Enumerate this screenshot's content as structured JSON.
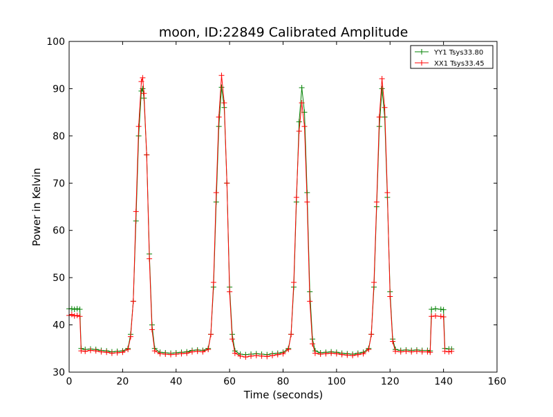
{
  "chart_data": {
    "type": "line",
    "title": "moon, ID:22849 Calibrated Amplitude",
    "xlabel": "Time (seconds)",
    "ylabel": "Power in Kelvin",
    "xlim": [
      0,
      160
    ],
    "ylim": [
      30,
      100
    ],
    "xticks": [
      0,
      20,
      40,
      60,
      80,
      100,
      120,
      140,
      160
    ],
    "yticks": [
      30,
      40,
      50,
      60,
      70,
      80,
      90,
      100
    ],
    "grid": false,
    "legend_position": "top-right",
    "peaks": [
      {
        "time": 27.2,
        "yy1": 90.0,
        "xx1": 92.3
      },
      {
        "time": 57.0,
        "yy1": 90.3,
        "xx1": 92.8
      },
      {
        "time": 87.0,
        "yy1": 90.2,
        "xx1": 87.0
      },
      {
        "time": 117.0,
        "yy1": 90.0,
        "xx1": 92.1
      }
    ],
    "series": [
      {
        "name": "YY1 Tsys33.80",
        "color": "#008000",
        "marker": "+",
        "x": [
          0,
          1,
          2,
          3,
          4,
          4.5,
          6,
          8,
          10,
          12,
          14,
          16,
          18,
          20,
          22,
          23,
          24,
          25,
          26,
          27,
          27.5,
          28,
          29,
          30,
          31,
          32,
          34,
          36,
          38,
          40,
          42,
          44,
          46,
          48,
          50,
          52,
          53,
          54,
          55,
          56,
          57,
          58,
          59,
          60,
          61,
          62,
          64,
          66,
          68,
          70,
          72,
          74,
          76,
          78,
          80,
          82,
          83,
          84,
          85,
          86,
          87,
          88,
          89,
          90,
          91,
          92,
          94,
          96,
          98,
          100,
          102,
          104,
          106,
          108,
          110,
          112,
          113,
          114,
          115,
          116,
          117,
          118,
          119,
          120,
          121,
          122,
          124,
          126,
          128,
          130,
          132,
          134,
          135,
          135.5,
          137,
          139,
          140,
          140.5,
          142,
          143
        ],
        "values": [
          43.4,
          43.4,
          43.3,
          43.4,
          43.3,
          35.0,
          34.8,
          34.9,
          34.8,
          34.6,
          34.5,
          34.3,
          34.4,
          34.5,
          35.0,
          38.0,
          45.0,
          62.0,
          80.0,
          89.5,
          90.0,
          88.0,
          76.0,
          55.0,
          40.0,
          35.0,
          34.2,
          34.1,
          34.0,
          34.1,
          34.2,
          34.3,
          34.6,
          34.7,
          34.6,
          35.0,
          38.0,
          48.0,
          66.0,
          82.0,
          90.3,
          86.0,
          70.0,
          48.0,
          38.0,
          34.5,
          33.8,
          33.7,
          33.8,
          33.9,
          33.8,
          33.7,
          33.9,
          34.0,
          34.2,
          35.0,
          38.0,
          48.0,
          66.0,
          83.0,
          90.2,
          85.0,
          68.0,
          47.0,
          37.0,
          34.5,
          34.1,
          34.2,
          34.3,
          34.2,
          34.0,
          33.9,
          33.8,
          34.0,
          34.2,
          35.0,
          38.0,
          48.0,
          65.0,
          82.0,
          90.0,
          84.0,
          67.0,
          47.0,
          37.0,
          34.8,
          34.6,
          34.7,
          34.6,
          34.7,
          34.6,
          34.6,
          34.5,
          43.3,
          43.4,
          43.3,
          43.2,
          35.0,
          34.9,
          34.9
        ]
      },
      {
        "name": "XX1 Tsys33.45",
        "color": "#ff0000",
        "marker": "+",
        "x": [
          0,
          1,
          2,
          3,
          4,
          4.5,
          6,
          8,
          10,
          12,
          14,
          16,
          18,
          20,
          22,
          23,
          24,
          25,
          26,
          27,
          27.5,
          28,
          29,
          30,
          31,
          32,
          34,
          36,
          38,
          40,
          42,
          44,
          46,
          48,
          50,
          52,
          53,
          54,
          55,
          56,
          57,
          58,
          59,
          60,
          61,
          62,
          64,
          66,
          68,
          70,
          72,
          74,
          76,
          78,
          80,
          82,
          83,
          84,
          85,
          86,
          87,
          88,
          89,
          90,
          91,
          92,
          94,
          96,
          98,
          100,
          102,
          104,
          106,
          108,
          110,
          112,
          113,
          114,
          115,
          116,
          117,
          118,
          119,
          120,
          121,
          122,
          124,
          126,
          128,
          130,
          132,
          134,
          135,
          135.5,
          137,
          139,
          140,
          140.5,
          142,
          143
        ],
        "values": [
          42.0,
          42.2,
          41.9,
          42.0,
          41.8,
          34.5,
          34.4,
          34.6,
          34.5,
          34.3,
          34.2,
          34.0,
          34.1,
          34.2,
          34.8,
          37.5,
          45.0,
          64.0,
          82.0,
          91.5,
          92.3,
          89.0,
          76.0,
          54.0,
          39.0,
          34.5,
          33.9,
          33.8,
          33.7,
          33.8,
          33.9,
          34.0,
          34.3,
          34.4,
          34.3,
          34.8,
          38.0,
          49.0,
          68.0,
          84.0,
          92.8,
          87.0,
          70.0,
          47.0,
          37.0,
          34.0,
          33.4,
          33.2,
          33.4,
          33.5,
          33.4,
          33.3,
          33.5,
          33.7,
          33.9,
          34.8,
          38.0,
          49.0,
          67.0,
          81.0,
          87.0,
          82.0,
          66.0,
          45.0,
          36.0,
          34.0,
          33.8,
          33.9,
          34.0,
          33.9,
          33.7,
          33.6,
          33.5,
          33.7,
          33.9,
          34.8,
          38.0,
          49.0,
          66.0,
          84.0,
          92.1,
          86.0,
          68.0,
          46.0,
          36.5,
          34.4,
          34.3,
          34.4,
          34.3,
          34.4,
          34.3,
          34.3,
          34.2,
          41.8,
          41.9,
          41.8,
          41.7,
          34.4,
          34.3,
          34.4
        ]
      }
    ]
  }
}
